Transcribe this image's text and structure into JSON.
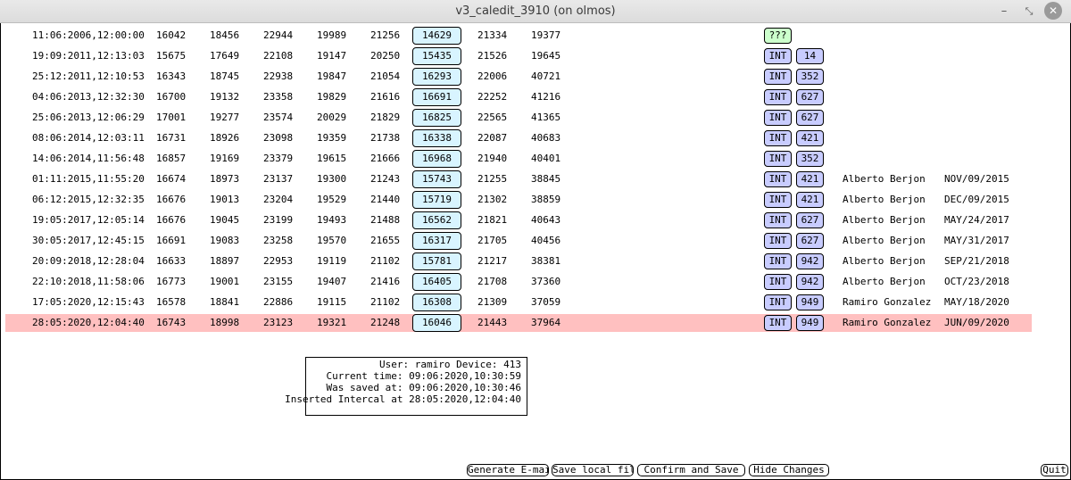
{
  "window": {
    "title": "v3_caledit_3910 (on olmos)"
  },
  "rows": [
    {
      "ts": "11:06:2006,12:00:00",
      "c1": "16042",
      "c2": "18456",
      "c3": "22944",
      "c4": "19989",
      "c5": "21256",
      "c6": "14629",
      "c7": "21334",
      "c8": "19377",
      "q": "???",
      "type": "",
      "num": "",
      "user": "",
      "date": "",
      "selected": false
    },
    {
      "ts": "19:09:2011,12:13:03",
      "c1": "15675",
      "c2": "17649",
      "c3": "22108",
      "c4": "19147",
      "c5": "20250",
      "c6": "15435",
      "c7": "21526",
      "c8": "19645",
      "q": "",
      "type": "INT",
      "num": "14",
      "user": "",
      "date": "",
      "selected": false
    },
    {
      "ts": "25:12:2011,12:10:53",
      "c1": "16343",
      "c2": "18745",
      "c3": "22938",
      "c4": "19847",
      "c5": "21054",
      "c6": "16293",
      "c7": "22006",
      "c8": "40721",
      "q": "",
      "type": "INT",
      "num": "352",
      "user": "",
      "date": "",
      "selected": false
    },
    {
      "ts": "04:06:2013,12:32:30",
      "c1": "16700",
      "c2": "19132",
      "c3": "23358",
      "c4": "19829",
      "c5": "21616",
      "c6": "16691",
      "c7": "22252",
      "c8": "41216",
      "q": "",
      "type": "INT",
      "num": "627",
      "user": "",
      "date": "",
      "selected": false
    },
    {
      "ts": "25:06:2013,12:06:29",
      "c1": "17001",
      "c2": "19277",
      "c3": "23574",
      "c4": "20029",
      "c5": "21829",
      "c6": "16825",
      "c7": "22565",
      "c8": "41365",
      "q": "",
      "type": "INT",
      "num": "627",
      "user": "",
      "date": "",
      "selected": false
    },
    {
      "ts": "08:06:2014,12:03:11",
      "c1": "16731",
      "c2": "18926",
      "c3": "23098",
      "c4": "19359",
      "c5": "21738",
      "c6": "16338",
      "c7": "22087",
      "c8": "40683",
      "q": "",
      "type": "INT",
      "num": "421",
      "user": "",
      "date": "",
      "selected": false
    },
    {
      "ts": "14:06:2014,11:56:48",
      "c1": "16857",
      "c2": "19169",
      "c3": "23379",
      "c4": "19615",
      "c5": "21666",
      "c6": "16968",
      "c7": "21940",
      "c8": "40401",
      "q": "",
      "type": "INT",
      "num": "352",
      "user": "",
      "date": "",
      "selected": false
    },
    {
      "ts": "01:11:2015,11:55:20",
      "c1": "16674",
      "c2": "18973",
      "c3": "23137",
      "c4": "19300",
      "c5": "21243",
      "c6": "15743",
      "c7": "21255",
      "c8": "38845",
      "q": "",
      "type": "INT",
      "num": "421",
      "user": "Alberto Berjon",
      "date": "NOV/09/2015",
      "selected": false
    },
    {
      "ts": "06:12:2015,12:32:35",
      "c1": "16676",
      "c2": "19013",
      "c3": "23204",
      "c4": "19529",
      "c5": "21440",
      "c6": "15719",
      "c7": "21302",
      "c8": "38859",
      "q": "",
      "type": "INT",
      "num": "421",
      "user": "Alberto Berjon",
      "date": "DEC/09/2015",
      "selected": false
    },
    {
      "ts": "19:05:2017,12:05:14",
      "c1": "16676",
      "c2": "19045",
      "c3": "23199",
      "c4": "19493",
      "c5": "21488",
      "c6": "16562",
      "c7": "21821",
      "c8": "40643",
      "q": "",
      "type": "INT",
      "num": "627",
      "user": "Alberto Berjon",
      "date": "MAY/24/2017",
      "selected": false
    },
    {
      "ts": "30:05:2017,12:45:15",
      "c1": "16691",
      "c2": "19083",
      "c3": "23258",
      "c4": "19570",
      "c5": "21655",
      "c6": "16317",
      "c7": "21705",
      "c8": "40456",
      "q": "",
      "type": "INT",
      "num": "627",
      "user": "Alberto Berjon",
      "date": "MAY/31/2017",
      "selected": false
    },
    {
      "ts": "20:09:2018,12:28:04",
      "c1": "16633",
      "c2": "18897",
      "c3": "22953",
      "c4": "19119",
      "c5": "21102",
      "c6": "15781",
      "c7": "21217",
      "c8": "38381",
      "q": "",
      "type": "INT",
      "num": "942",
      "user": "Alberto Berjon",
      "date": "SEP/21/2018",
      "selected": false
    },
    {
      "ts": "22:10:2018,11:58:06",
      "c1": "16773",
      "c2": "19001",
      "c3": "23155",
      "c4": "19407",
      "c5": "21416",
      "c6": "16405",
      "c7": "21708",
      "c8": "37360",
      "q": "",
      "type": "INT",
      "num": "942",
      "user": "Alberto Berjon",
      "date": "OCT/23/2018",
      "selected": false
    },
    {
      "ts": "17:05:2020,12:15:43",
      "c1": "16578",
      "c2": "18841",
      "c3": "22886",
      "c4": "19115",
      "c5": "21102",
      "c6": "16308",
      "c7": "21309",
      "c8": "37059",
      "q": "",
      "type": "INT",
      "num": "949",
      "user": "Ramiro Gonzalez",
      "date": "MAY/18/2020",
      "selected": false
    },
    {
      "ts": "28:05:2020,12:04:40",
      "c1": "16743",
      "c2": "18998",
      "c3": "23123",
      "c4": "19321",
      "c5": "21248",
      "c6": "16046",
      "c7": "21443",
      "c8": "37964",
      "q": "",
      "type": "INT",
      "num": "949",
      "user": "Ramiro Gonzalez",
      "date": "JUN/09/2020",
      "selected": true
    }
  ],
  "info": {
    "line1": "User: ramiro Device: 413",
    "line2": "Current time: 09:06:2020,10:30:59",
    "line3": "Was saved at: 09:06:2020,10:30:46",
    "line4": "Inserted Intercal at 28:05:2020,12:04:40"
  },
  "buttons": {
    "email": "Generate E-mail",
    "save": "Save local file",
    "confirm": "Confirm and Save",
    "hide": "Hide Changes",
    "quit": "Quit"
  },
  "colors": {
    "selected_row": "#ffc0c0",
    "value_button": "#d8f4ff",
    "int_badge": "#c8ccff",
    "unknown_badge": "#ccffcc"
  }
}
